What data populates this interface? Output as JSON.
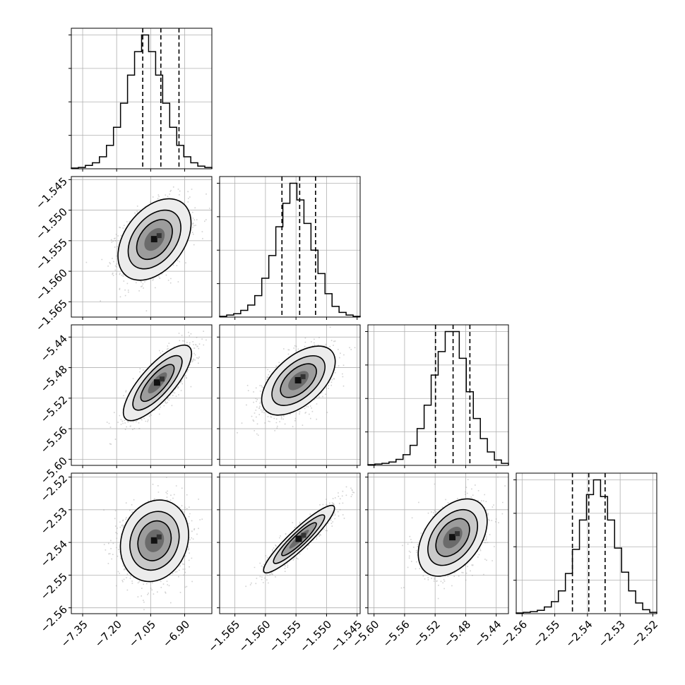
{
  "chart_data": {
    "type": "corner",
    "parameters": [
      {
        "range": [
          -7.4,
          -6.78
        ],
        "ticks": [
          -7.35,
          -7.2,
          -7.05,
          -6.9
        ],
        "tick_labels": [
          "−7.35",
          "−7.20",
          "−7.05",
          "−6.90"
        ],
        "quantiles": [
          -7.085,
          -7.005,
          -6.925
        ],
        "hist_counts": [
          1,
          2,
          5,
          9,
          18,
          35,
          62,
          98,
          140,
          175,
          200,
          175,
          140,
          98,
          62,
          35,
          18,
          9,
          4,
          2
        ],
        "hist_ymax": 210
      },
      {
        "range": [
          -1.5675,
          -1.5445
        ],
        "ticks": [
          -1.565,
          -1.56,
          -1.555,
          -1.55,
          -1.545
        ],
        "tick_labels": [
          "−1.565",
          "−1.560",
          "−1.555",
          "−1.550",
          "−1.545"
        ],
        "quantiles": [
          -1.5573,
          -1.5544,
          -1.5518
        ],
        "hist_counts": [
          1,
          3,
          5,
          10,
          18,
          32,
          58,
          92,
          135,
          170,
          200,
          175,
          140,
          100,
          65,
          35,
          16,
          7,
          3,
          1
        ],
        "hist_ymax": 210
      },
      {
        "range": [
          -5.608,
          -5.424
        ],
        "ticks": [
          -5.6,
          -5.56,
          -5.52,
          -5.48,
          -5.44
        ],
        "tick_labels": [
          "−5.60",
          "−5.56",
          "−5.52",
          "−5.48",
          "−5.44"
        ],
        "quantiles": [
          -5.5195,
          -5.4965,
          -5.4745
        ],
        "hist_counts": [
          1,
          2,
          3,
          5,
          9,
          16,
          30,
          55,
          90,
          135,
          170,
          200,
          200,
          160,
          110,
          70,
          40,
          20,
          8,
          3
        ],
        "hist_ymax": 210
      },
      {
        "range": [
          -2.5618,
          -2.5188
        ],
        "ticks": [
          -2.56,
          -2.55,
          -2.54,
          -2.53,
          -2.52
        ],
        "tick_labels": [
          "−2.56",
          "−2.55",
          "−2.54",
          "−2.53",
          "−2.52"
        ],
        "quantiles": [
          -2.5446,
          -2.5396,
          -2.5346
        ],
        "hist_counts": [
          1,
          2,
          3,
          5,
          10,
          18,
          34,
          60,
          96,
          140,
          178,
          200,
          175,
          140,
          98,
          62,
          34,
          16,
          6,
          2
        ],
        "hist_ymax": 210
      }
    ],
    "pairs": [
      {
        "x": 0,
        "y": 1,
        "center": [
          -7.033,
          -1.5548
        ],
        "sigma": [
          0.075,
          0.0031
        ],
        "rho": 0.4
      },
      {
        "x": 0,
        "y": 2,
        "center": [
          -7.02,
          -5.5
        ],
        "sigma": [
          0.07,
          0.023
        ],
        "rho": 0.78
      },
      {
        "x": 1,
        "y": 2,
        "center": [
          -1.5546,
          -5.497
        ],
        "sigma": [
          0.0028,
          0.021
        ],
        "rho": 0.55
      },
      {
        "x": 0,
        "y": 3,
        "center": [
          -7.033,
          -2.5395
        ],
        "sigma": [
          0.07,
          0.0058
        ],
        "rho": 0.15
      },
      {
        "x": 1,
        "y": 3,
        "center": [
          -1.5545,
          -2.539
        ],
        "sigma": [
          0.0027,
          0.0048
        ],
        "rho": 0.92
      },
      {
        "x": 2,
        "y": 3,
        "center": [
          -5.497,
          -2.5385
        ],
        "sigma": [
          0.021,
          0.0055
        ],
        "rho": 0.42
      }
    ],
    "grid": true,
    "xlabel": "",
    "ylabel": ""
  }
}
